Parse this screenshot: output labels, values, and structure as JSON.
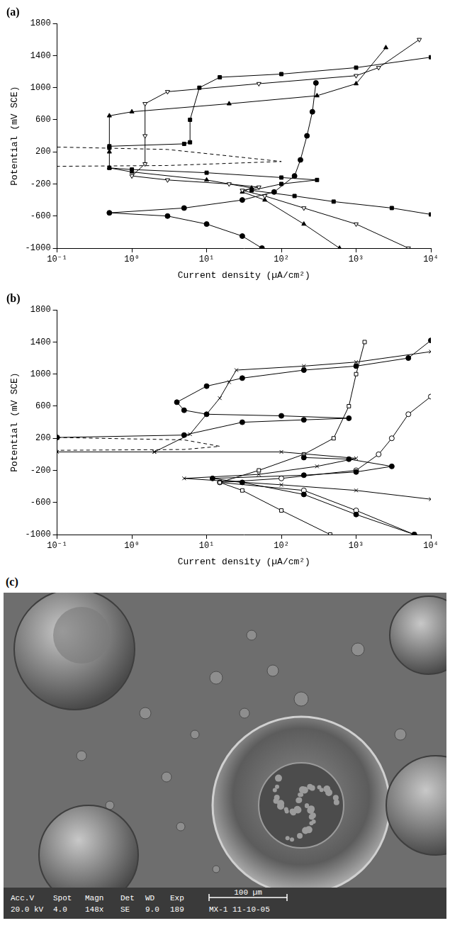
{
  "chart_data": [
    {
      "type": "line",
      "title": "(a)",
      "x_label": "Current density (µA/cm²)",
      "y_label": "Potential (mV SCE)",
      "log": "x",
      "grid": false,
      "xlim": [
        0.1,
        10000
      ],
      "xticks": [
        {
          "value": 0.1,
          "label": "10⁻¹"
        },
        {
          "value": 1,
          "label": "10⁰"
        },
        {
          "value": 10,
          "label": "10¹"
        },
        {
          "value": 100,
          "label": "10²"
        },
        {
          "value": 1000,
          "label": "10³"
        },
        {
          "value": 10000,
          "label": "10⁴"
        }
      ],
      "ylim": [
        -1000,
        1800
      ],
      "yticks": [
        -1000,
        -600,
        -200,
        200,
        600,
        1000,
        1400,
        1800
      ],
      "series": [
        {
          "color": "#000000",
          "marker": "filled_circle",
          "line_style": "solid",
          "x": [
            55,
            30,
            10,
            3,
            0.5,
            5,
            30,
            80,
            150,
            180,
            220,
            260,
            290
          ],
          "values": [
            -1000,
            -850,
            -700,
            -600,
            -560,
            -500,
            -400,
            -300,
            -100,
            100,
            400,
            700,
            1060
          ]
        },
        {
          "color": "#000000",
          "marker": "filled_square",
          "line_style": "solid",
          "x": [
            10000,
            3000,
            500,
            150,
            40,
            100,
            300,
            100,
            10,
            1,
            0.5
          ],
          "values": [
            -580,
            -500,
            -420,
            -350,
            -280,
            -200,
            -150,
            -120,
            -60,
            -20,
            0
          ]
        },
        {
          "color": "#000000",
          "marker": "filled_square",
          "line_style": "solid",
          "x": [
            0.5,
            0.5,
            5,
            6,
            6,
            8,
            15,
            100,
            1000,
            10000
          ],
          "values": [
            250,
            270,
            300,
            320,
            600,
            1000,
            1130,
            1170,
            1250,
            1380
          ]
        },
        {
          "color": "#000000",
          "marker": "open_triangle_down",
          "line_style": "solid",
          "x": [
            5000,
            1000,
            200,
            60,
            30,
            50,
            20,
            3,
            1,
            1.5,
            1.5,
            1.5,
            3,
            50,
            1000,
            2000,
            7000
          ],
          "values": [
            -1000,
            -700,
            -500,
            -350,
            -280,
            -240,
            -200,
            -150,
            -100,
            50,
            400,
            800,
            950,
            1050,
            1150,
            1250,
            1600
          ]
        },
        {
          "color": "#000000",
          "marker": "filled_triangle",
          "line_style": "solid",
          "x": [
            600,
            200,
            60,
            30,
            40,
            10,
            1,
            0.5,
            0.5,
            0.5,
            1,
            20,
            300,
            1000,
            2500
          ],
          "values": [
            -1000,
            -700,
            -400,
            -300,
            -250,
            -150,
            -50,
            0,
            200,
            650,
            700,
            800,
            900,
            1050,
            1500
          ]
        },
        {
          "color": "#000000",
          "marker": "none",
          "line_style": "dashed",
          "x": [
            0.1,
            3,
            100,
            3,
            0.1
          ],
          "values": [
            260,
            230,
            80,
            30,
            20
          ]
        }
      ]
    },
    {
      "type": "line",
      "title": "(b)",
      "x_label": "Current density (µA/cm²)",
      "y_label": "Potential (mV SCE)",
      "log": "x",
      "grid": false,
      "xlim": [
        0.1,
        10000
      ],
      "xticks": [
        {
          "value": 0.1,
          "label": "10⁻¹"
        },
        {
          "value": 1,
          "label": "10⁰"
        },
        {
          "value": 10,
          "label": "10¹"
        },
        {
          "value": 100,
          "label": "10²"
        },
        {
          "value": 1000,
          "label": "10³"
        },
        {
          "value": 10000,
          "label": "10⁴"
        }
      ],
      "ylim": [
        -1000,
        1800
      ],
      "yticks": [
        -1000,
        -600,
        -200,
        200,
        600,
        1000,
        1400,
        1800
      ],
      "series": [
        {
          "color": "#000000",
          "marker": "filled_circle",
          "line_style": "solid",
          "x": [
            6000,
            1000,
            200,
            30,
            12,
            200,
            1000,
            3000,
            800,
            200
          ],
          "values": [
            -1000,
            -750,
            -500,
            -350,
            -300,
            -260,
            -220,
            -150,
            -60,
            -40
          ]
        },
        {
          "color": "#000000",
          "marker": "filled_circle",
          "line_style": "solid",
          "x": [
            0.1,
            5,
            30,
            200,
            800,
            100,
            10,
            5,
            4,
            10,
            30,
            200,
            1000,
            5000,
            10000
          ],
          "values": [
            210,
            240,
            400,
            430,
            450,
            480,
            500,
            550,
            650,
            850,
            950,
            1050,
            1100,
            1200,
            1420
          ]
        },
        {
          "color": "#000000",
          "marker": "cross",
          "line_style": "solid",
          "x": [
            10000,
            1000,
            100,
            5,
            50,
            300,
            1000,
            100,
            2,
            0.1
          ],
          "values": [
            -560,
            -450,
            -380,
            -300,
            -250,
            -150,
            -50,
            30,
            30,
            30
          ]
        },
        {
          "color": "#000000",
          "marker": "cross",
          "line_style": "solid",
          "x": [
            2,
            6,
            15,
            20,
            25,
            200,
            1000,
            10000
          ],
          "values": [
            30,
            250,
            700,
            900,
            1050,
            1100,
            1150,
            1280
          ]
        },
        {
          "color": "#000000",
          "marker": "open_square",
          "line_style": "solid",
          "x": [
            450,
            100,
            30,
            15,
            50,
            200,
            500,
            800,
            1000,
            1300
          ],
          "values": [
            -1000,
            -700,
            -450,
            -350,
            -200,
            0,
            200,
            600,
            1000,
            1400
          ]
        },
        {
          "color": "#000000",
          "marker": "open_circle",
          "line_style": "solid",
          "x": [
            6000,
            1000,
            200,
            15,
            100,
            1000,
            2000,
            3000,
            5000,
            10000
          ],
          "values": [
            -1000,
            -700,
            -450,
            -350,
            -300,
            -200,
            0,
            200,
            500,
            720
          ]
        },
        {
          "color": "#000000",
          "marker": "none",
          "line_style": "dashed",
          "x": [
            0.1,
            5,
            15,
            5,
            0.1
          ],
          "values": [
            210,
            180,
            100,
            60,
            50
          ]
        }
      ]
    }
  ],
  "image": {
    "title": "(c)",
    "info_header": [
      "Acc.V",
      "Spot",
      "Magn",
      "Det",
      "WD",
      "Exp"
    ],
    "info_values": [
      "20.0 kV",
      "4.0",
      "148x",
      "SE",
      "9.0",
      "189"
    ],
    "scale_bar": "100 µm",
    "sample": "MX-1 11-10-05"
  }
}
